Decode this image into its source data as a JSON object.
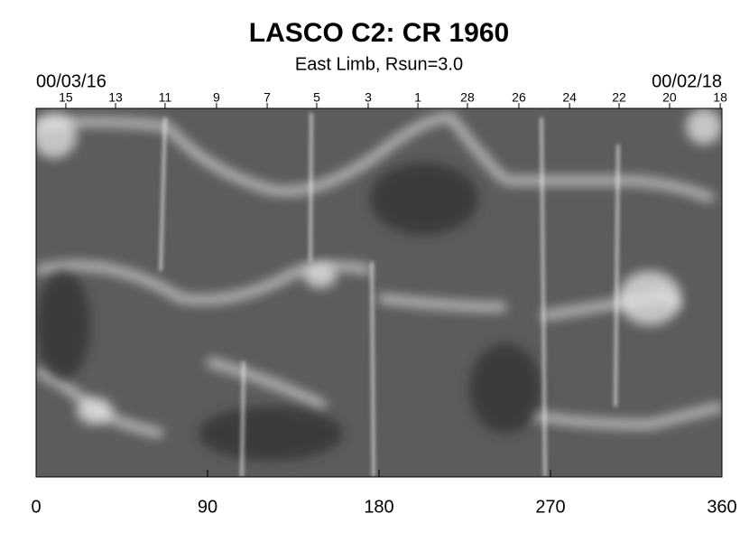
{
  "chart_data": {
    "type": "synoptic-map",
    "title": "LASCO C2: CR 1960",
    "subtitle": "East Limb, Rsun=3.0",
    "start_date": "00/03/16",
    "end_date": "00/02/18",
    "xlim": [
      0,
      360
    ],
    "xticks": [
      0,
      90,
      180,
      270,
      360
    ],
    "top_ticks": [
      {
        "value": 15.6,
        "label": "15"
      },
      {
        "value": 41.7,
        "label": "13"
      },
      {
        "value": 67.7,
        "label": "11"
      },
      {
        "value": 94.7,
        "label": "9"
      },
      {
        "value": 121.3,
        "label": "7"
      },
      {
        "value": 147.3,
        "label": "5"
      },
      {
        "value": 174.3,
        "label": "3"
      },
      {
        "value": 200.4,
        "label": "1"
      },
      {
        "value": 226.4,
        "label": "28"
      },
      {
        "value": 253.4,
        "label": "26"
      },
      {
        "value": 280.0,
        "label": "24"
      },
      {
        "value": 306.0,
        "label": "22"
      },
      {
        "value": 332.5,
        "label": "20"
      },
      {
        "value": 359.1,
        "label": "18"
      }
    ]
  }
}
